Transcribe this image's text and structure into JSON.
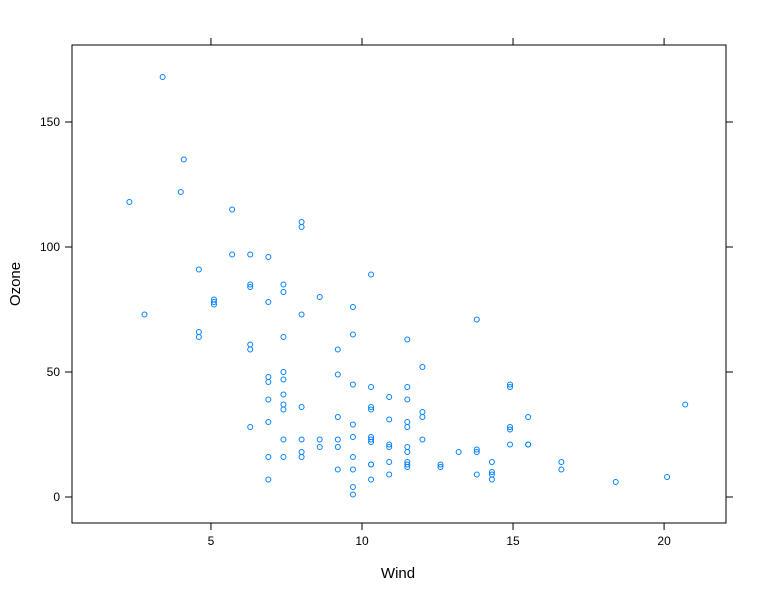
{
  "chart_data": {
    "type": "scatter",
    "x_label": "Wind",
    "y_label": "Ozone",
    "x": [
      7.4,
      8.0,
      12.6,
      11.5,
      14.9,
      8.6,
      13.8,
      20.1,
      6.9,
      9.7,
      9.2,
      10.9,
      13.2,
      11.5,
      12.0,
      18.4,
      11.5,
      9.7,
      9.7,
      16.6,
      9.7,
      12.0,
      12.0,
      14.9,
      5.7,
      7.4,
      9.7,
      13.8,
      11.5,
      8.0,
      14.9,
      20.7,
      9.2,
      11.5,
      10.3,
      4.1,
      9.2,
      9.2,
      4.6,
      10.9,
      5.1,
      6.3,
      5.7,
      7.4,
      14.3,
      14.9,
      14.3,
      6.9,
      10.3,
      6.3,
      5.1,
      11.5,
      6.9,
      8.6,
      8.0,
      8.6,
      12.0,
      7.4,
      7.4,
      7.4,
      9.2,
      6.9,
      13.8,
      7.4,
      6.9,
      7.4,
      4.6,
      4.0,
      10.3,
      8.0,
      11.5,
      11.5,
      9.7,
      10.3,
      6.3,
      7.4,
      10.9,
      10.3,
      15.5,
      14.3,
      9.7,
      3.4,
      8.0,
      9.7,
      2.3,
      6.3,
      6.3,
      6.9,
      5.1,
      2.8,
      4.6,
      7.4,
      15.5,
      10.9,
      10.3,
      10.9,
      9.7,
      14.9,
      15.5,
      6.3,
      10.9,
      11.5,
      6.9,
      13.8,
      10.3,
      10.3,
      8.0,
      12.6,
      9.2,
      10.3,
      10.3,
      16.6,
      6.9,
      14.3,
      8.0,
      11.5
    ],
    "values": [
      41,
      36,
      12,
      18,
      28,
      23,
      19,
      8,
      7,
      16,
      11,
      14,
      18,
      14,
      34,
      6,
      30,
      11,
      1,
      11,
      4,
      32,
      23,
      45,
      115,
      37,
      29,
      71,
      39,
      23,
      21,
      37,
      20,
      12,
      13,
      135,
      49,
      32,
      64,
      40,
      77,
      97,
      97,
      85,
      10,
      27,
      7,
      48,
      35,
      61,
      79,
      63,
      16,
      80,
      108,
      20,
      52,
      82,
      50,
      64,
      59,
      39,
      9,
      16,
      78,
      35,
      66,
      122,
      89,
      110,
      44,
      28,
      65,
      22,
      59,
      23,
      31,
      44,
      21,
      9,
      45,
      168,
      73,
      76,
      118,
      84,
      85,
      96,
      78,
      73,
      91,
      47,
      32,
      20,
      23,
      21,
      24,
      44,
      21,
      28,
      9,
      13,
      46,
      18,
      13,
      24,
      16,
      13,
      23,
      36,
      7,
      14,
      30,
      14,
      18,
      20
    ],
    "color": "#0080ff",
    "xlim": [
      0.4,
      22.05
    ],
    "xticks": [
      5,
      10,
      15,
      20
    ],
    "ylim": [
      -10.4,
      180.8
    ],
    "yticks": [
      0,
      50,
      100,
      150
    ]
  }
}
